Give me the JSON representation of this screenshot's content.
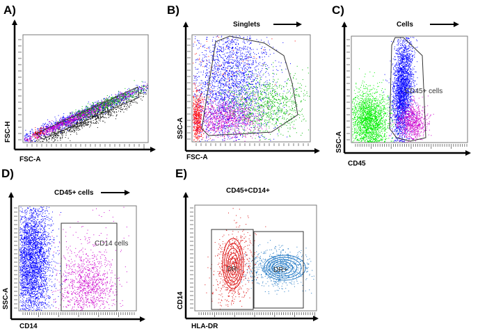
{
  "chart_data": [
    {
      "panel": "A)",
      "type": "scatter",
      "xlabel": "FSC-A",
      "ylabel": "FSC-H",
      "gate_title": "",
      "gates": [
        {
          "label": ""
        }
      ],
      "series_colors": [
        "#ff0000",
        "#0000ff",
        "#cc00cc",
        "#00cc00",
        "#000000"
      ]
    },
    {
      "panel": "B)",
      "type": "scatter",
      "xlabel": "FSC-A",
      "ylabel": "SSC-A",
      "gate_title": "Singlets",
      "gates": [
        {
          "label": ""
        }
      ],
      "series_colors": [
        "#ff0000",
        "#0000ff",
        "#cc00cc",
        "#00cc00"
      ]
    },
    {
      "panel": "C)",
      "type": "scatter",
      "xlabel": "CD45",
      "ylabel": "SSC-A",
      "gate_title": "Cells",
      "gates": [
        {
          "label": "CD45+ cells"
        }
      ],
      "series_colors": [
        "#00ee00",
        "#0000ff",
        "#cc00cc"
      ]
    },
    {
      "panel": "D)",
      "type": "scatter",
      "xlabel": "CD14",
      "ylabel": "SSC-A",
      "gate_title": "CD45+ cells",
      "gates": [
        {
          "label": "CD14 cells"
        }
      ],
      "series_colors": [
        "#0000ff",
        "#cc00cc"
      ]
    },
    {
      "panel": "E)",
      "type": "contour",
      "xlabel": "HLA-DR",
      "ylabel": "CD14",
      "gate_title": "CD45+CD14+",
      "gates": [
        {
          "label": "DR-"
        },
        {
          "label": "DR+"
        }
      ],
      "series_colors": [
        "#dd1111",
        "#1f77c4"
      ]
    }
  ]
}
